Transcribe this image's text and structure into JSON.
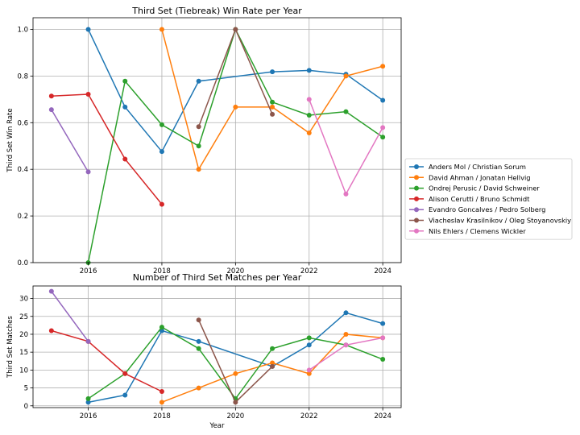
{
  "chart_data": [
    {
      "type": "line",
      "title": "Third Set (Tiebreak) Win Rate per Year",
      "xlabel": "",
      "ylabel": "Third Set Win Rate",
      "xlim": [
        2014.5,
        2024.5
      ],
      "ylim": [
        0,
        1.05
      ],
      "xticks": [
        2016,
        2018,
        2020,
        2022,
        2024
      ],
      "yticks": [
        0.0,
        0.2,
        0.4,
        0.6,
        0.8,
        1.0
      ],
      "ytick_labels": [
        "0.0",
        "0.2",
        "0.4",
        "0.6",
        "0.8",
        "1.0"
      ],
      "grid": true,
      "legend": "outside-right",
      "series": [
        {
          "name": "Anders Mol / Christian Sorum",
          "color": "#1f77b4",
          "x": [
            2016,
            2017,
            2018,
            2019,
            2021,
            2022,
            2023,
            2024
          ],
          "y": [
            1.0,
            0.667,
            0.476,
            0.778,
            0.818,
            0.824,
            0.808,
            0.696
          ]
        },
        {
          "name": "David Ahman / Jonatan Hellvig",
          "color": "#ff7f0e",
          "x": [
            2018,
            2019,
            2020,
            2021,
            2022,
            2023,
            2024
          ],
          "y": [
            1.0,
            0.4,
            0.667,
            0.667,
            0.556,
            0.8,
            0.842
          ]
        },
        {
          "name": "Ondrej Perusic / David Schweiner",
          "color": "#2ca02c",
          "x": [
            2016,
            2017,
            2018,
            2019,
            2020,
            2021,
            2022,
            2023,
            2024
          ],
          "y": [
            0.0,
            0.778,
            0.591,
            0.5,
            1.0,
            0.688,
            0.632,
            0.647,
            0.538
          ]
        },
        {
          "name": "Alison Cerutti / Bruno Schmidt",
          "color": "#d62728",
          "x": [
            2015,
            2016,
            2017,
            2018
          ],
          "y": [
            0.714,
            0.722,
            0.444,
            0.25
          ]
        },
        {
          "name": "Evandro Goncalves / Pedro Solberg",
          "color": "#9467bd",
          "x": [
            2015,
            2016
          ],
          "y": [
            0.656,
            0.389
          ]
        },
        {
          "name": "Viacheslav Krasilnikov / Oleg Stoyanovskiy",
          "color": "#8c564b",
          "x": [
            2019,
            2020,
            2021
          ],
          "y": [
            0.583,
            1.0,
            0.636
          ]
        },
        {
          "name": "Nils Ehlers / Clemens Wickler",
          "color": "#e377c2",
          "x": [
            2022,
            2023,
            2024
          ],
          "y": [
            0.7,
            0.294,
            0.579
          ]
        }
      ]
    },
    {
      "type": "line",
      "title": "Number of Third Set Matches per Year",
      "xlabel": "Year",
      "ylabel": "Third Set Matches",
      "xlim": [
        2014.5,
        2024.5
      ],
      "ylim": [
        -0.5,
        33.5
      ],
      "xticks": [
        2016,
        2018,
        2020,
        2022,
        2024
      ],
      "yticks": [
        0,
        5,
        10,
        15,
        20,
        25,
        30
      ],
      "ytick_labels": [
        "0",
        "5",
        "10",
        "15",
        "20",
        "25",
        "30"
      ],
      "grid": true,
      "series": [
        {
          "name": "Anders Mol / Christian Sorum",
          "color": "#1f77b4",
          "x": [
            2016,
            2017,
            2018,
            2019,
            2021,
            2022,
            2023,
            2024
          ],
          "y": [
            1,
            3,
            21,
            18,
            11,
            17,
            26,
            23
          ]
        },
        {
          "name": "David Ahman / Jonatan Hellvig",
          "color": "#ff7f0e",
          "x": [
            2018,
            2019,
            2020,
            2021,
            2022,
            2023,
            2024
          ],
          "y": [
            1,
            5,
            9,
            12,
            9,
            20,
            19
          ]
        },
        {
          "name": "Ondrej Perusic / David Schweiner",
          "color": "#2ca02c",
          "x": [
            2016,
            2017,
            2018,
            2019,
            2020,
            2021,
            2022,
            2023,
            2024
          ],
          "y": [
            2,
            9,
            22,
            16,
            2,
            16,
            19,
            17,
            13
          ]
        },
        {
          "name": "Alison Cerutti / Bruno Schmidt",
          "color": "#d62728",
          "x": [
            2015,
            2016,
            2017,
            2018
          ],
          "y": [
            21,
            18,
            9,
            4
          ]
        },
        {
          "name": "Evandro Goncalves / Pedro Solberg",
          "color": "#9467bd",
          "x": [
            2015,
            2016
          ],
          "y": [
            32,
            18
          ]
        },
        {
          "name": "Viacheslav Krasilnikov / Oleg Stoyanovskiy",
          "color": "#8c564b",
          "x": [
            2019,
            2020,
            2021
          ],
          "y": [
            24,
            1,
            11
          ]
        },
        {
          "name": "Nils Ehlers / Clemens Wickler",
          "color": "#e377c2",
          "x": [
            2022,
            2023,
            2024
          ],
          "y": [
            10,
            17,
            19
          ]
        }
      ]
    }
  ]
}
